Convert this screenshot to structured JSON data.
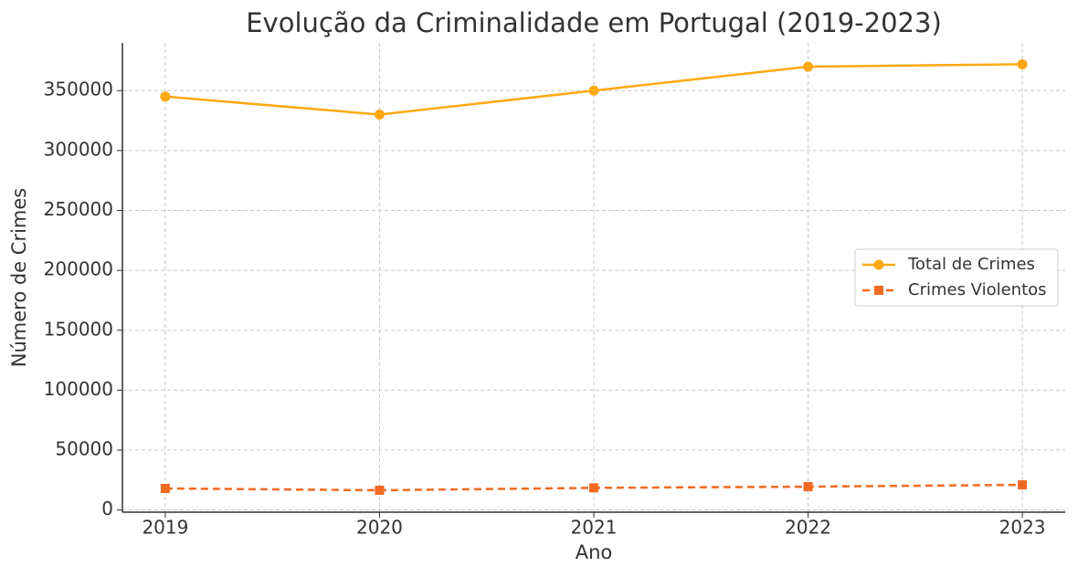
{
  "chart_data": {
    "type": "line",
    "title": "Evolução da Criminalidade em Portugal (2019-2023)",
    "x_label": "Ano",
    "y_label": "Número de Crimes",
    "x": [
      2019,
      2020,
      2021,
      2022,
      2023
    ],
    "series": [
      {
        "name": "Total de Crimes",
        "color": "#ffa812",
        "marker": "circle",
        "linestyle": "solid",
        "values": [
          345000,
          330000,
          350000,
          370000,
          372000
        ]
      },
      {
        "name": "Crimes Violentos",
        "color": "#f26a21",
        "marker": "square",
        "linestyle": "dashed",
        "values": [
          18000,
          16500,
          18500,
          19500,
          21000
        ]
      }
    ],
    "xlim": [
      2018.8,
      2023.2
    ],
    "xticks": [
      2019,
      2020,
      2021,
      2022,
      2023
    ],
    "ylim": [
      -1800,
      389800
    ],
    "yticks": [
      0,
      50000,
      100000,
      150000,
      200000,
      250000,
      300000,
      350000
    ],
    "grid": true,
    "legend": "center right"
  }
}
